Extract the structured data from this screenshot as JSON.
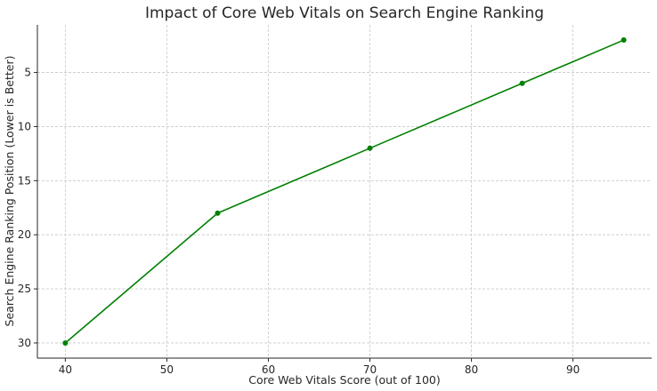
{
  "chart_data": {
    "type": "line",
    "title": "Impact of Core Web Vitals on Search Engine Ranking",
    "xlabel": "Core Web Vitals Score (out of 100)",
    "ylabel": "Search Engine Ranking Position (Lower is Better)",
    "x": [
      40,
      55,
      70,
      85,
      95
    ],
    "series": [
      {
        "values": [
          30,
          18,
          12,
          6,
          2
        ]
      }
    ],
    "xlim": [
      37.25,
      97.75
    ],
    "ylim": [
      31.4,
      0.6
    ],
    "y_inverted": true,
    "xticks": [
      40,
      50,
      60,
      70,
      80,
      90
    ],
    "yticks": [
      5,
      10,
      15,
      20,
      25,
      30
    ],
    "grid": true,
    "line_color": "#008000",
    "marker": "circle"
  }
}
